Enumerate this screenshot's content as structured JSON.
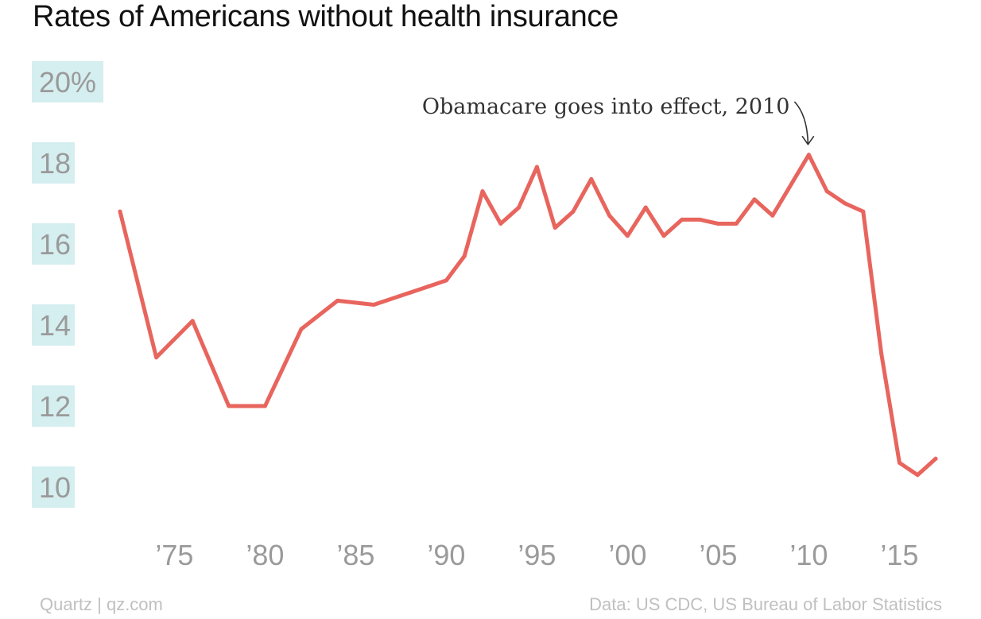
{
  "chart_data": {
    "type": "line",
    "title": "Rates of Americans without health insurance",
    "ylim": [
      10,
      20
    ],
    "y_ticks": [
      {
        "value": 20,
        "label": "20%"
      },
      {
        "value": 18,
        "label": "18"
      },
      {
        "value": 16,
        "label": "16"
      },
      {
        "value": 14,
        "label": "14"
      },
      {
        "value": 12,
        "label": "12"
      },
      {
        "value": 10,
        "label": "10"
      }
    ],
    "x_ticks": [
      {
        "value": 1975,
        "label": "’75"
      },
      {
        "value": 1980,
        "label": "’80"
      },
      {
        "value": 1985,
        "label": "’85"
      },
      {
        "value": 1990,
        "label": "’90"
      },
      {
        "value": 1995,
        "label": "’95"
      },
      {
        "value": 2000,
        "label": "’00"
      },
      {
        "value": 2005,
        "label": "’05"
      },
      {
        "value": 2010,
        "label": "’10"
      },
      {
        "value": 2015,
        "label": "’15"
      }
    ],
    "series": [
      {
        "color": "#e8655e",
        "x": [
          1972,
          1974,
          1976,
          1978,
          1980,
          1982,
          1984,
          1986,
          1988,
          1989,
          1990,
          1991,
          1992,
          1993,
          1994,
          1995,
          1996,
          1997,
          1998,
          1999,
          2000,
          2001,
          2002,
          2003,
          2004,
          2005,
          2006,
          2007,
          2008,
          2010,
          2011,
          2012,
          2013,
          2014,
          2015,
          2016,
          2017
        ],
        "y": [
          16.8,
          13.2,
          14.1,
          12.0,
          12.0,
          13.9,
          14.6,
          14.5,
          14.8,
          14.95,
          15.1,
          15.7,
          17.3,
          16.5,
          16.9,
          17.9,
          16.4,
          16.8,
          17.6,
          16.7,
          16.2,
          16.9,
          16.2,
          16.6,
          16.6,
          16.5,
          16.5,
          17.1,
          16.7,
          18.2,
          17.3,
          17.0,
          16.8,
          13.3,
          10.6,
          10.3,
          10.7
        ]
      }
    ],
    "annotations": [
      {
        "text": "Obamacare goes into effect, 2010",
        "x": 2010,
        "y": 18.2
      }
    ]
  },
  "footer": {
    "source_left": "Quartz | qz.com",
    "source_right": "Data: US CDC, US Bureau of Labor Statistics"
  }
}
